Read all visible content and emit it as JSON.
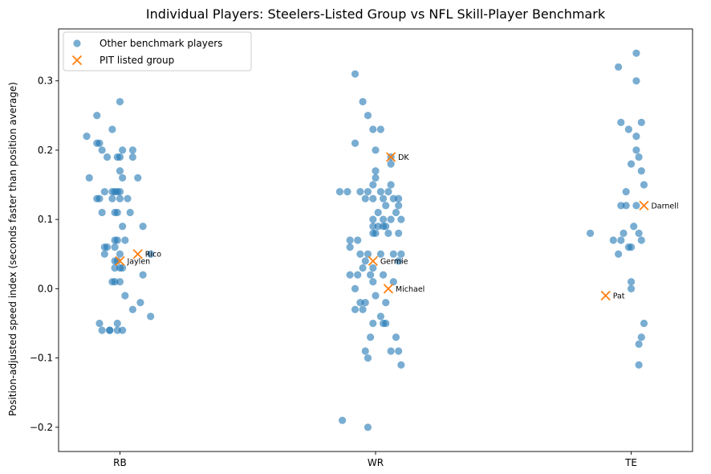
{
  "chart_data": {
    "type": "scatter",
    "title": "Individual Players: Steelers-Listed Group vs NFL Skill-Player Benchmark",
    "xlabel": "",
    "ylabel": "Position-adjusted speed index (seconds faster than position average)",
    "categories": [
      "RB",
      "WR",
      "TE"
    ],
    "xlim": [
      -0.24,
      2.24
    ],
    "ylim": [
      -0.235,
      0.375
    ],
    "yticks": [
      -0.2,
      -0.1,
      0.0,
      0.1,
      0.2,
      0.3
    ],
    "ytick_labels": [
      "−0.2",
      "−0.1",
      "0.0",
      "0.1",
      "0.2",
      "0.3"
    ],
    "grid": false,
    "legend_position": "top-left",
    "colors": {
      "benchmark": "#1f77b4",
      "pit": "#ff7f0e"
    },
    "series": [
      {
        "name": "Other benchmark players",
        "marker": "circle",
        "points": [
          {
            "x": -0.09,
            "y": 0.25
          },
          {
            "x": -0.13,
            "y": 0.22
          },
          {
            "x": -0.08,
            "y": 0.21
          },
          {
            "x": -0.09,
            "y": 0.21
          },
          {
            "x": -0.07,
            "y": 0.2
          },
          {
            "x": -0.05,
            "y": 0.19
          },
          {
            "x": -0.03,
            "y": 0.23
          },
          {
            "x": 0.0,
            "y": 0.27
          },
          {
            "x": -0.01,
            "y": 0.19
          },
          {
            "x": 0.0,
            "y": 0.19
          },
          {
            "x": 0.01,
            "y": 0.2
          },
          {
            "x": 0.05,
            "y": 0.19
          },
          {
            "x": 0.05,
            "y": 0.2
          },
          {
            "x": 0.0,
            "y": 0.17
          },
          {
            "x": 0.01,
            "y": 0.16
          },
          {
            "x": 0.07,
            "y": 0.16
          },
          {
            "x": -0.12,
            "y": 0.16
          },
          {
            "x": -0.09,
            "y": 0.13
          },
          {
            "x": -0.08,
            "y": 0.13
          },
          {
            "x": -0.06,
            "y": 0.14
          },
          {
            "x": -0.03,
            "y": 0.14
          },
          {
            "x": -0.02,
            "y": 0.14
          },
          {
            "x": -0.01,
            "y": 0.14
          },
          {
            "x": 0.0,
            "y": 0.14
          },
          {
            "x": 0.0,
            "y": 0.13
          },
          {
            "x": -0.03,
            "y": 0.13
          },
          {
            "x": 0.03,
            "y": 0.13
          },
          {
            "x": -0.07,
            "y": 0.11
          },
          {
            "x": -0.01,
            "y": 0.11
          },
          {
            "x": -0.02,
            "y": 0.11
          },
          {
            "x": 0.04,
            "y": 0.11
          },
          {
            "x": 0.01,
            "y": 0.09
          },
          {
            "x": 0.09,
            "y": 0.09
          },
          {
            "x": 0.02,
            "y": 0.07
          },
          {
            "x": -0.01,
            "y": 0.07
          },
          {
            "x": -0.02,
            "y": 0.07
          },
          {
            "x": -0.05,
            "y": 0.06
          },
          {
            "x": -0.06,
            "y": 0.06
          },
          {
            "x": -0.02,
            "y": 0.06
          },
          {
            "x": 0.0,
            "y": 0.05
          },
          {
            "x": -0.06,
            "y": 0.05
          },
          {
            "x": -0.02,
            "y": 0.04
          },
          {
            "x": -0.01,
            "y": 0.04
          },
          {
            "x": 0.0,
            "y": 0.03
          },
          {
            "x": -0.02,
            "y": 0.03
          },
          {
            "x": 0.01,
            "y": 0.03
          },
          {
            "x": 0.12,
            "y": 0.05
          },
          {
            "x": 0.09,
            "y": 0.02
          },
          {
            "x": -0.02,
            "y": 0.01
          },
          {
            "x": -0.03,
            "y": 0.01
          },
          {
            "x": 0.0,
            "y": 0.01
          },
          {
            "x": 0.02,
            "y": -0.01
          },
          {
            "x": 0.08,
            "y": -0.02
          },
          {
            "x": 0.05,
            "y": -0.03
          },
          {
            "x": 0.12,
            "y": -0.04
          },
          {
            "x": -0.08,
            "y": -0.05
          },
          {
            "x": -0.01,
            "y": -0.05
          },
          {
            "x": -0.07,
            "y": -0.06
          },
          {
            "x": -0.04,
            "y": -0.06
          },
          {
            "x": -0.04,
            "y": -0.06
          },
          {
            "x": -0.01,
            "y": -0.06
          },
          {
            "x": 0.01,
            "y": -0.06
          },
          {
            "x": 0.92,
            "y": 0.31
          },
          {
            "x": 0.95,
            "y": 0.27
          },
          {
            "x": 0.97,
            "y": 0.25
          },
          {
            "x": 0.99,
            "y": 0.23
          },
          {
            "x": 1.02,
            "y": 0.23
          },
          {
            "x": 0.92,
            "y": 0.21
          },
          {
            "x": 1.0,
            "y": 0.2
          },
          {
            "x": 1.06,
            "y": 0.19
          },
          {
            "x": 1.06,
            "y": 0.18
          },
          {
            "x": 1.0,
            "y": 0.17
          },
          {
            "x": 0.99,
            "y": 0.15
          },
          {
            "x": 1.06,
            "y": 0.15
          },
          {
            "x": 1.0,
            "y": 0.16
          },
          {
            "x": 0.86,
            "y": 0.14
          },
          {
            "x": 0.89,
            "y": 0.14
          },
          {
            "x": 0.94,
            "y": 0.14
          },
          {
            "x": 0.97,
            "y": 0.14
          },
          {
            "x": 1.02,
            "y": 0.14
          },
          {
            "x": 1.05,
            "y": 0.14
          },
          {
            "x": 0.96,
            "y": 0.13
          },
          {
            "x": 0.99,
            "y": 0.13
          },
          {
            "x": 1.03,
            "y": 0.13
          },
          {
            "x": 1.07,
            "y": 0.13
          },
          {
            "x": 1.09,
            "y": 0.13
          },
          {
            "x": 1.04,
            "y": 0.12
          },
          {
            "x": 1.09,
            "y": 0.12
          },
          {
            "x": 1.01,
            "y": 0.11
          },
          {
            "x": 1.08,
            "y": 0.11
          },
          {
            "x": 0.99,
            "y": 0.1
          },
          {
            "x": 1.03,
            "y": 0.1
          },
          {
            "x": 1.06,
            "y": 0.1
          },
          {
            "x": 1.1,
            "y": 0.1
          },
          {
            "x": 0.99,
            "y": 0.09
          },
          {
            "x": 1.01,
            "y": 0.09
          },
          {
            "x": 1.03,
            "y": 0.09
          },
          {
            "x": 1.04,
            "y": 0.09
          },
          {
            "x": 1.05,
            "y": 0.08
          },
          {
            "x": 0.99,
            "y": 0.08
          },
          {
            "x": 1.0,
            "y": 0.08
          },
          {
            "x": 1.09,
            "y": 0.08
          },
          {
            "x": 0.93,
            "y": 0.07
          },
          {
            "x": 0.9,
            "y": 0.07
          },
          {
            "x": 0.94,
            "y": 0.05
          },
          {
            "x": 0.97,
            "y": 0.05
          },
          {
            "x": 1.02,
            "y": 0.05
          },
          {
            "x": 1.07,
            "y": 0.05
          },
          {
            "x": 1.1,
            "y": 0.05
          },
          {
            "x": 0.9,
            "y": 0.06
          },
          {
            "x": 0.96,
            "y": 0.04
          },
          {
            "x": 0.95,
            "y": 0.03
          },
          {
            "x": 0.99,
            "y": 0.03
          },
          {
            "x": 1.09,
            "y": 0.04
          },
          {
            "x": 0.9,
            "y": 0.02
          },
          {
            "x": 0.93,
            "y": 0.02
          },
          {
            "x": 0.98,
            "y": 0.02
          },
          {
            "x": 1.03,
            "y": 0.02
          },
          {
            "x": 0.99,
            "y": 0.01
          },
          {
            "x": 1.07,
            "y": 0.01
          },
          {
            "x": 0.92,
            "y": 0.0
          },
          {
            "x": 0.94,
            "y": -0.02
          },
          {
            "x": 0.96,
            "y": -0.02
          },
          {
            "x": 1.0,
            "y": -0.01
          },
          {
            "x": 1.04,
            "y": -0.02
          },
          {
            "x": 0.92,
            "y": -0.03
          },
          {
            "x": 0.95,
            "y": -0.03
          },
          {
            "x": 0.99,
            "y": -0.05
          },
          {
            "x": 1.02,
            "y": -0.04
          },
          {
            "x": 1.03,
            "y": -0.05
          },
          {
            "x": 1.04,
            "y": -0.05
          },
          {
            "x": 0.98,
            "y": -0.07
          },
          {
            "x": 1.08,
            "y": -0.07
          },
          {
            "x": 0.96,
            "y": -0.09
          },
          {
            "x": 1.06,
            "y": -0.09
          },
          {
            "x": 1.09,
            "y": -0.09
          },
          {
            "x": 0.97,
            "y": -0.1
          },
          {
            "x": 1.1,
            "y": -0.11
          },
          {
            "x": 0.87,
            "y": -0.19
          },
          {
            "x": 0.97,
            "y": -0.2
          },
          {
            "x": 2.02,
            "y": 0.34
          },
          {
            "x": 1.95,
            "y": 0.32
          },
          {
            "x": 2.02,
            "y": 0.3
          },
          {
            "x": 1.96,
            "y": 0.24
          },
          {
            "x": 2.04,
            "y": 0.24
          },
          {
            "x": 1.99,
            "y": 0.23
          },
          {
            "x": 2.02,
            "y": 0.22
          },
          {
            "x": 2.02,
            "y": 0.2
          },
          {
            "x": 2.03,
            "y": 0.19
          },
          {
            "x": 2.0,
            "y": 0.18
          },
          {
            "x": 2.04,
            "y": 0.17
          },
          {
            "x": 2.05,
            "y": 0.15
          },
          {
            "x": 1.98,
            "y": 0.14
          },
          {
            "x": 1.96,
            "y": 0.12
          },
          {
            "x": 1.98,
            "y": 0.12
          },
          {
            "x": 2.02,
            "y": 0.12
          },
          {
            "x": 2.01,
            "y": 0.09
          },
          {
            "x": 1.84,
            "y": 0.08
          },
          {
            "x": 1.97,
            "y": 0.08
          },
          {
            "x": 2.03,
            "y": 0.08
          },
          {
            "x": 1.93,
            "y": 0.07
          },
          {
            "x": 1.96,
            "y": 0.07
          },
          {
            "x": 2.04,
            "y": 0.07
          },
          {
            "x": 1.99,
            "y": 0.06
          },
          {
            "x": 2.0,
            "y": 0.06
          },
          {
            "x": 1.95,
            "y": 0.05
          },
          {
            "x": 2.0,
            "y": 0.01
          },
          {
            "x": 2.0,
            "y": 0.0
          },
          {
            "x": 2.05,
            "y": -0.05
          },
          {
            "x": 2.04,
            "y": -0.07
          },
          {
            "x": 2.03,
            "y": -0.08
          },
          {
            "x": 2.03,
            "y": -0.11
          }
        ]
      },
      {
        "name": "PIT listed group",
        "marker": "x",
        "points": [
          {
            "x": 0.07,
            "y": 0.05,
            "label": "Rico"
          },
          {
            "x": 0.0,
            "y": 0.04,
            "label": "Jaylen"
          },
          {
            "x": 1.06,
            "y": 0.19,
            "label": "DK"
          },
          {
            "x": 0.99,
            "y": 0.04,
            "label": "Germie"
          },
          {
            "x": 1.05,
            "y": 0.0,
            "label": "Michael"
          },
          {
            "x": 2.05,
            "y": 0.12,
            "label": "Darnell"
          },
          {
            "x": 1.9,
            "y": -0.01,
            "label": "Pat"
          }
        ]
      }
    ]
  }
}
